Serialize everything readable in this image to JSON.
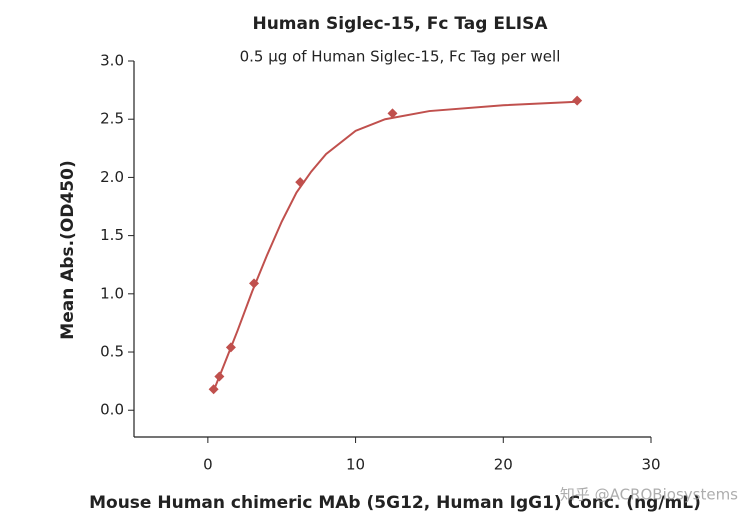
{
  "chart_data": {
    "type": "scatter",
    "title": "Human Siglec-15, Fc Tag ELISA",
    "subtitle": "0.5 μg of Human Siglec-15, Fc Tag per well",
    "x_label": "Mouse Human chimeric MAb (5G12, Human IgG1) Conc. (ng/mL)",
    "y_label": "Mean Abs.(OD450)",
    "x": [
      0.39,
      0.78,
      1.56,
      3.125,
      6.25,
      12.5,
      25
    ],
    "series": [
      {
        "color": "#c0504d",
        "values": [
          0.18,
          0.29,
          0.54,
          1.09,
          1.96,
          2.55,
          2.66
        ]
      }
    ],
    "fit": {
      "color": "#c0504d",
      "x": [
        0.4,
        1,
        2,
        3,
        4,
        5,
        6,
        7,
        8,
        10,
        12,
        15,
        20,
        25
      ],
      "values": [
        0.17,
        0.36,
        0.68,
        1.02,
        1.33,
        1.62,
        1.87,
        2.05,
        2.2,
        2.4,
        2.5,
        2.57,
        2.62,
        2.65
      ]
    },
    "xlim": [
      -5,
      30
    ],
    "xticks": [
      0,
      10,
      20,
      30
    ],
    "ylim": [
      -0.23,
      3.0
    ],
    "yticks": [
      {
        "value": 0,
        "label": "0.0"
      },
      0.5,
      {
        "value": 1,
        "label": "1.0"
      },
      1.5,
      {
        "value": 2,
        "label": "2.0"
      },
      2.5,
      {
        "value": 3,
        "label": "3.0"
      }
    ],
    "watermark": "知乎 @ACROBiosystems"
  }
}
